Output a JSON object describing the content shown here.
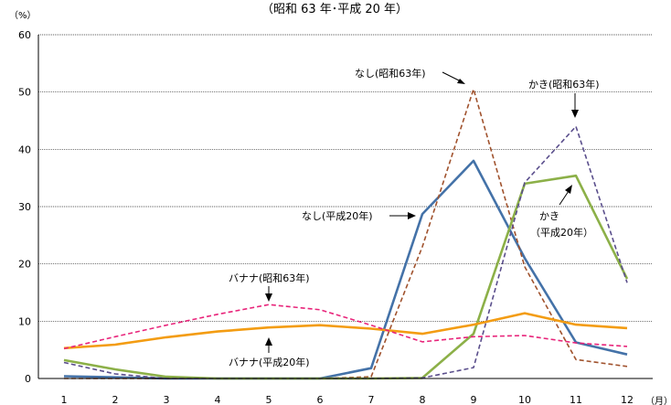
{
  "chart_data": {
    "type": "line",
    "title": "（昭和 63 年･平成 20 年）",
    "ylabel": "（%）",
    "xlabel": "（月）",
    "ylim": [
      0,
      60
    ],
    "yticks": [
      0,
      10,
      20,
      30,
      40,
      50,
      60
    ],
    "x": [
      1,
      2,
      3,
      4,
      5,
      6,
      7,
      8,
      9,
      10,
      11,
      12
    ],
    "grid": true,
    "series": [
      {
        "name": "なし（平成20年）",
        "color": "#4472A8",
        "dash": false,
        "values": [
          0.4,
          0.2,
          0,
          0,
          0,
          0,
          1.8,
          28.7,
          38.0,
          21.0,
          6.3,
          4.2
        ]
      },
      {
        "name": "なし（昭和63年）",
        "color": "#A0522D",
        "dash": true,
        "values": [
          0,
          0,
          0,
          0,
          0,
          0,
          0.3,
          23.0,
          50.5,
          19.5,
          3.3,
          2.1
        ]
      },
      {
        "name": "かき（平成20年）",
        "color": "#8CB048",
        "dash": false,
        "values": [
          3.2,
          1.6,
          0.3,
          0,
          0,
          0,
          0,
          0.1,
          7.8,
          34.0,
          35.4,
          17.4
        ]
      },
      {
        "name": "かき（昭和63年）",
        "color": "#5A4E8C",
        "dash": true,
        "values": [
          2.8,
          0.8,
          0,
          0,
          0,
          0,
          0,
          0.1,
          1.9,
          34.2,
          44.0,
          16.7
        ]
      },
      {
        "name": "バナナ（平成20年）",
        "color": "#F39C12",
        "dash": false,
        "values": [
          5.3,
          5.9,
          7.2,
          8.2,
          8.9,
          9.3,
          8.7,
          7.8,
          9.4,
          11.4,
          9.4,
          8.8
        ]
      },
      {
        "name": "バナナ（昭和63年）",
        "color": "#E8247A",
        "dash": true,
        "values": [
          5.2,
          7.3,
          9.3,
          11.2,
          12.9,
          12.0,
          9.3,
          6.4,
          7.3,
          7.5,
          6.2,
          5.6
        ]
      }
    ],
    "annotations": [
      {
        "text": "なし(昭和63年)"
      },
      {
        "text": "かき(昭和63年)"
      },
      {
        "text": "なし(平成20年)"
      },
      {
        "text": "かき"
      },
      {
        "text": "（平成20年）"
      },
      {
        "text": "バナナ(昭和63年)"
      },
      {
        "text": "バナナ(平成20年)"
      }
    ]
  }
}
